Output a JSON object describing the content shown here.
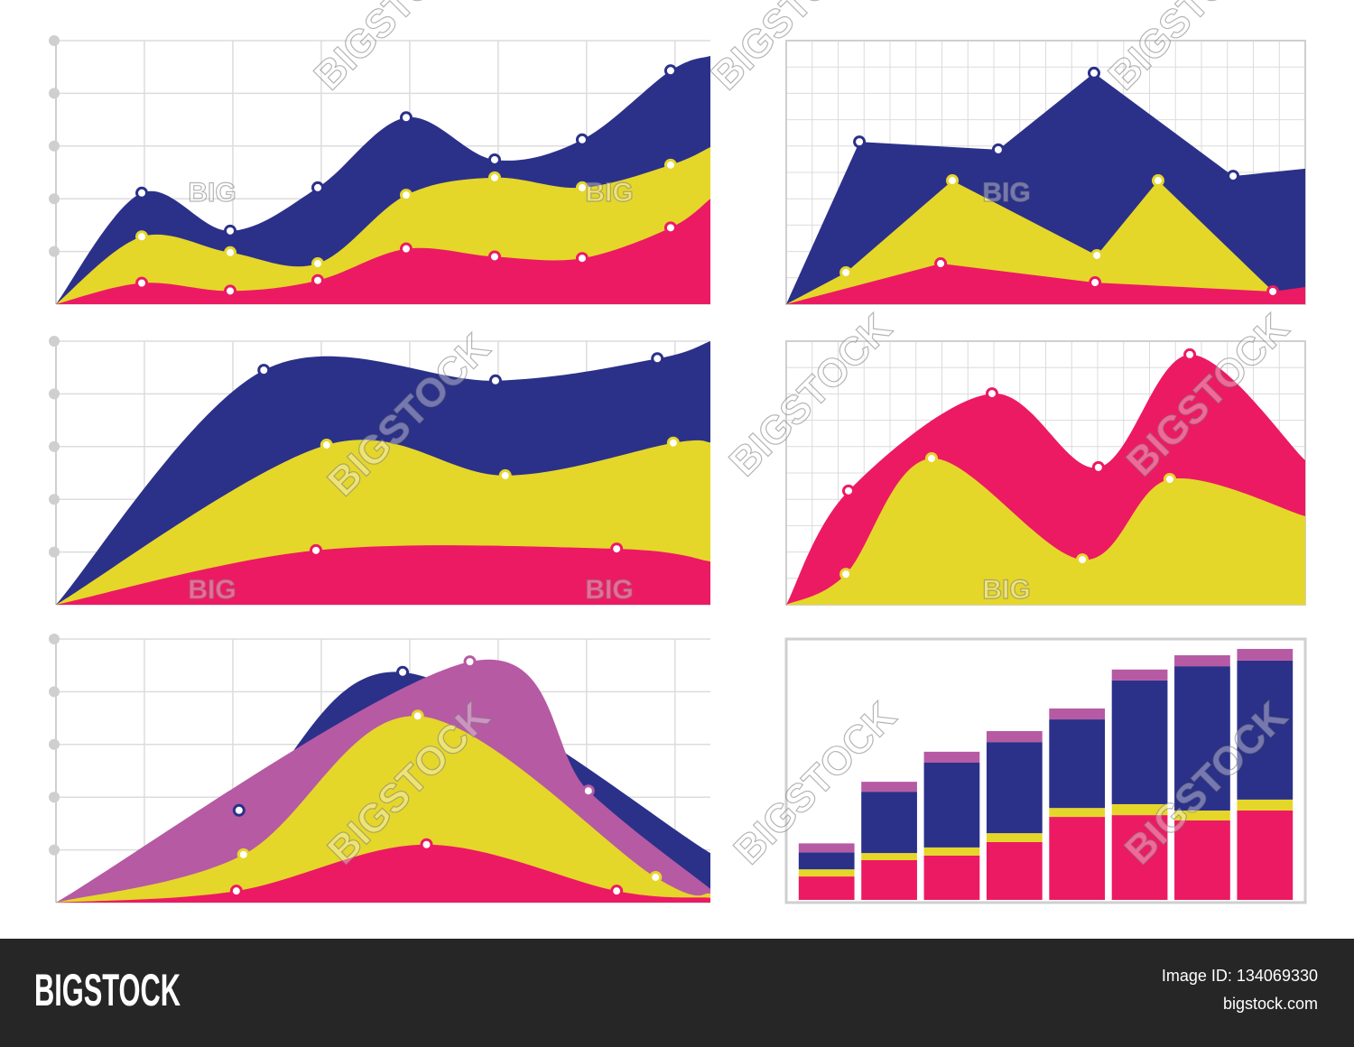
{
  "chart_data": [
    {
      "type": "area",
      "stacked": true,
      "smooth": true,
      "grid": true,
      "xlim": [
        0,
        7.4
      ],
      "ylim": [
        0,
        5
      ],
      "x": [
        0,
        0.97,
        1.97,
        2.96,
        3.96,
        4.96,
        5.95,
        6.95,
        7.4
      ],
      "series": [
        {
          "color": "#ec1a63",
          "values": [
            0,
            0.4,
            0.25,
            0.45,
            1.05,
            0.9,
            0.87,
            1.45,
            2.0
          ]
        },
        {
          "color": "#e5d62a",
          "values": [
            0,
            0.88,
            0.73,
            0.32,
            1.02,
            1.5,
            1.34,
            1.19,
            0.98
          ]
        },
        {
          "color": "#2b3189",
          "values": [
            0,
            0.83,
            0.41,
            1.44,
            1.47,
            0.34,
            0.91,
            1.79,
            1.73
          ]
        }
      ]
    },
    {
      "type": "area",
      "stacked": false,
      "smooth": false,
      "grid": true,
      "xlim": [
        0,
        20
      ],
      "ylim": [
        0,
        10
      ],
      "series": [
        {
          "color": "#2b3189",
          "x": [
            0,
            2.82,
            8.17,
            11.86,
            17.22,
            20
          ],
          "values": [
            0,
            6.16,
            5.86,
            8.77,
            4.86,
            5.14
          ]
        },
        {
          "color": "#e5d62a",
          "x": [
            0,
            2.3,
            6.4,
            11.97,
            14.33,
            19.27
          ],
          "values": [
            0,
            1.2,
            4.69,
            1.85,
            4.69,
            0
          ]
        },
        {
          "color": "#ec1a63",
          "x": [
            0,
            5.95,
            11.9,
            18.75,
            20
          ],
          "values": [
            0,
            1.54,
            0.82,
            0.48,
            0.65
          ]
        }
      ]
    },
    {
      "type": "area",
      "stacked": false,
      "smooth": true,
      "grid": true,
      "xlim": [
        0,
        7.4
      ],
      "ylim": [
        0,
        5
      ],
      "series": [
        {
          "color": "#2b3189",
          "x": [
            0,
            2.35,
            4.97,
            6.8,
            7.4
          ],
          "values": [
            0,
            4.45,
            4.25,
            4.67,
            5.0
          ]
        },
        {
          "color": "#e5d62a",
          "x": [
            0,
            3.06,
            5.08,
            6.98,
            7.4
          ],
          "values": [
            0,
            3.03,
            2.45,
            3.07,
            3.08
          ]
        },
        {
          "color": "#ec1a63",
          "x": [
            0,
            2.94,
            6.34,
            7.4
          ],
          "values": [
            0,
            1.03,
            1.06,
            0.82
          ]
        }
      ]
    },
    {
      "type": "area",
      "stacked": false,
      "smooth": true,
      "grid": true,
      "xlim": [
        0,
        20
      ],
      "ylim": [
        0,
        10
      ],
      "series": [
        {
          "color": "#ec1a63",
          "x": [
            0,
            2.4,
            7.93,
            12.03,
            15.55,
            20
          ],
          "values": [
            0,
            4.32,
            8.01,
            5.21,
            9.49,
            5.48
          ]
        },
        {
          "color": "#e5d62a",
          "x": [
            0,
            2.3,
            5.6,
            11.41,
            14.78,
            20
          ],
          "values": [
            0,
            1.16,
            5.55,
            1.71,
            4.76,
            3.36
          ]
        }
      ]
    },
    {
      "type": "area",
      "stacked": false,
      "smooth": true,
      "grid": true,
      "xlim": [
        0,
        7.4
      ],
      "ylim": [
        0,
        5
      ],
      "series": [
        {
          "color": "#2b3189",
          "x": [
            0,
            2.07,
            3.92,
            7.4
          ],
          "values": [
            0,
            1.75,
            4.37,
            0.94
          ]
        },
        {
          "color": "#b65aa4",
          "x": [
            0,
            4.68,
            6.02,
            7.4
          ],
          "values": [
            0,
            4.57,
            2.12,
            0.26
          ]
        },
        {
          "color": "#e5d62a",
          "x": [
            0,
            2.12,
            4.09,
            6.78,
            7.4
          ],
          "values": [
            0,
            0.91,
            3.54,
            0.48,
            0.17
          ]
        },
        {
          "color": "#ec1a63",
          "x": [
            0,
            2.04,
            4.19,
            6.34,
            7.4
          ],
          "values": [
            0,
            0.22,
            1.1,
            0.22,
            0.09
          ]
        }
      ]
    },
    {
      "type": "bar",
      "stacked": true,
      "grid": false,
      "ylim": [
        0,
        10
      ],
      "categories": [
        null,
        null,
        null,
        null,
        null,
        null,
        null,
        null
      ],
      "series": [
        {
          "color": "#ec1a63",
          "values": [
            0.92,
            1.56,
            1.74,
            2.27,
            3.26,
            3.33,
            3.12,
            3.51
          ]
        },
        {
          "color": "#e5d62a",
          "values": [
            0.28,
            0.28,
            0.32,
            0.35,
            0.35,
            0.43,
            0.39,
            0.43
          ]
        },
        {
          "color": "#2b3189",
          "values": [
            0.67,
            2.41,
            3.33,
            3.58,
            3.48,
            4.86,
            5.67,
            5.46
          ]
        },
        {
          "color": "#b65aa4",
          "values": [
            0.35,
            0.39,
            0.43,
            0.43,
            0.43,
            0.43,
            0.43,
            0.46
          ]
        }
      ]
    }
  ],
  "watermarks": [
    "BIG",
    "BIG",
    "BIG",
    "BIG",
    "BIG",
    "BIG",
    "BIGSTOCK",
    "BIGSTOCK",
    "BIGSTOCK",
    "BIGSTOCK",
    "BIGSTOCK",
    "BIGSTOCK",
    "BIGSTOCK",
    "BIGSTOCK",
    "BIGSTOCK"
  ],
  "footer": {
    "logo": "BIGSTOCK",
    "image_id": "Image ID: 134069330",
    "site": "bigstock.com"
  }
}
